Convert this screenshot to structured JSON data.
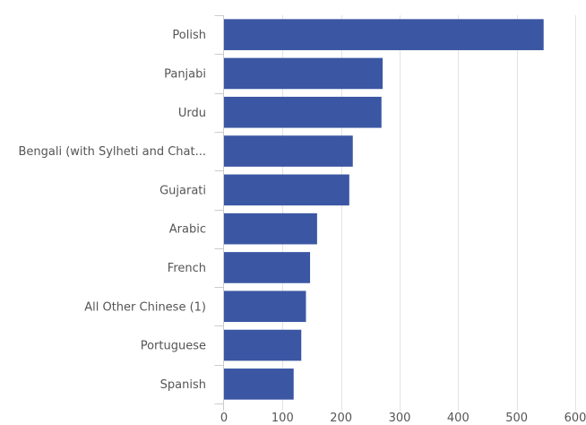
{
  "chart_data": {
    "type": "bar",
    "orientation": "horizontal",
    "categories": [
      "Polish",
      "Panjabi",
      "Urdu",
      "Bengali (with Sylheti and Chat...",
      "Gujarati",
      "Arabic",
      "French",
      "All Other Chinese (1)",
      "Portuguese",
      "Spanish"
    ],
    "values": [
      546,
      271,
      269,
      220,
      214,
      159,
      147,
      140,
      132,
      119
    ],
    "xlim": [
      0,
      600
    ],
    "xticks": [
      0,
      100,
      200,
      300,
      400,
      500,
      600
    ],
    "title": "",
    "xlabel": "",
    "ylabel": "",
    "grid": "vertical",
    "legend": "none",
    "bar_color": "#3b57a3"
  }
}
